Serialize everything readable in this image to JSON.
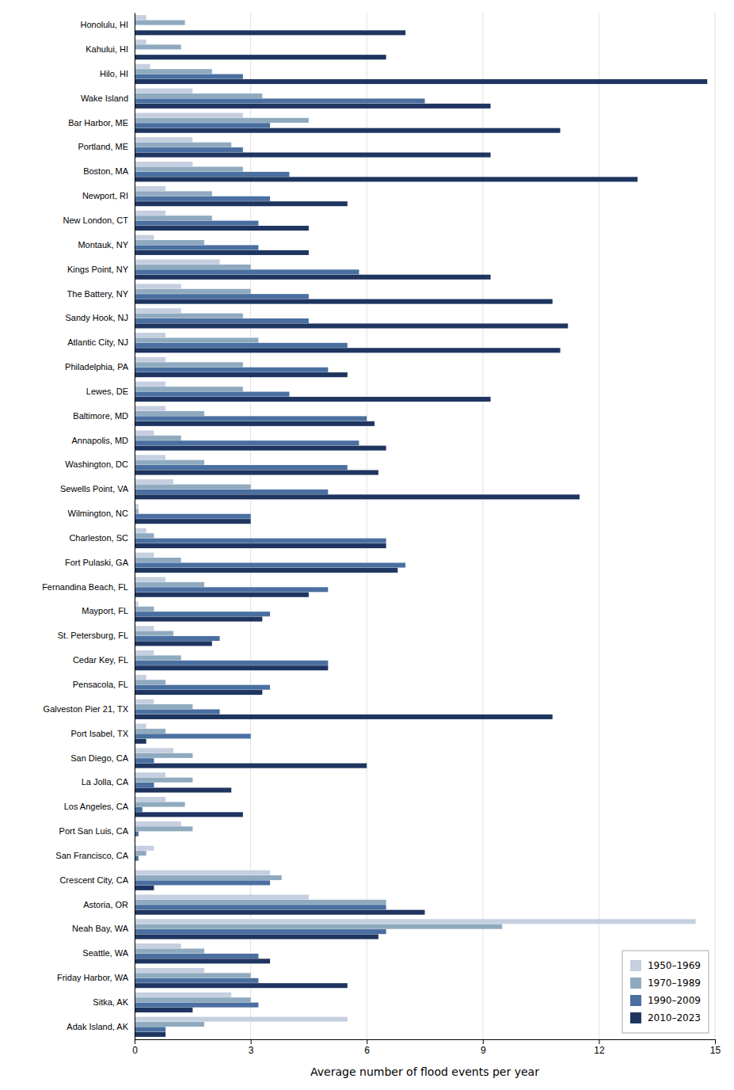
{
  "chart_data": {
    "type": "bar",
    "orientation": "horizontal",
    "xlabel": "Average number of flood events per year",
    "categories": [
      "Honolulu, HI",
      "Kahului, HI",
      "Hilo, HI",
      "Wake Island",
      "Bar Harbor, ME",
      "Portland, ME",
      "Boston, MA",
      "Newport, RI",
      "New London, CT",
      "Montauk, NY",
      "Kings Point, NY",
      "The Battery, NY",
      "Sandy Hook, NJ",
      "Atlantic City, NJ",
      "Philadelphia, PA",
      "Lewes, DE",
      "Baltimore, MD",
      "Annapolis, MD",
      "Washington, DC",
      "Sewells Point, VA",
      "Wilmington, NC",
      "Charleston, SC",
      "Fort Pulaski, GA",
      "Fernandina Beach, FL",
      "Mayport, FL",
      "St. Petersburg, FL",
      "Cedar Key, FL",
      "Pensacola, FL",
      "Galveston Pier 21, TX",
      "Port Isabel, TX",
      "San Diego, CA",
      "La Jolla, CA",
      "Los Angeles, CA",
      "Port San Luis, CA",
      "San Francisco, CA",
      "Crescent City, CA",
      "Astoria, OR",
      "Neah Bay, WA",
      "Seattle, WA",
      "Friday Harbor, WA",
      "Sitka, AK",
      "Adak Island, AK"
    ],
    "series": [
      {
        "name": "1950–1969",
        "color": "#c5cfe0",
        "values": [
          0.3,
          0.3,
          0.4,
          1.5,
          2.8,
          1.5,
          1.5,
          0.8,
          0.8,
          0.5,
          2.2,
          1.2,
          1.2,
          0.8,
          0.8,
          0.8,
          0.8,
          0.5,
          0.8,
          1.0,
          0.1,
          0.3,
          0.5,
          0.8,
          0.1,
          0.5,
          0.5,
          0.3,
          0.5,
          0.3,
          1.0,
          0.8,
          0.8,
          1.2,
          0.5,
          3.5,
          4.5,
          14.5,
          1.2,
          1.8,
          2.5,
          5.5
        ]
      },
      {
        "name": "1970–1989",
        "color": "#8faabf",
        "values": [
          1.3,
          1.2,
          2.0,
          3.3,
          4.5,
          2.5,
          2.8,
          2.0,
          2.0,
          1.8,
          3.0,
          3.0,
          2.8,
          3.2,
          2.8,
          2.8,
          1.8,
          1.2,
          1.8,
          3.0,
          0.1,
          0.5,
          1.2,
          1.8,
          0.5,
          1.0,
          1.2,
          0.8,
          1.5,
          0.8,
          1.5,
          1.5,
          1.3,
          1.5,
          0.3,
          3.8,
          6.5,
          9.5,
          1.8,
          3.0,
          3.0,
          1.8
        ]
      },
      {
        "name": "1990–2009",
        "color": "#4a6fa0",
        "values": [
          0.0,
          0.0,
          2.8,
          7.5,
          3.5,
          2.8,
          4.0,
          3.5,
          3.2,
          3.2,
          5.8,
          4.5,
          4.5,
          5.5,
          5.0,
          4.0,
          6.0,
          5.8,
          5.5,
          5.0,
          3.0,
          6.5,
          7.0,
          5.0,
          3.5,
          2.2,
          5.0,
          3.5,
          2.2,
          3.0,
          0.5,
          0.5,
          0.2,
          0.1,
          0.1,
          3.5,
          6.5,
          6.5,
          3.2,
          3.2,
          3.2,
          0.8
        ]
      },
      {
        "name": "2010–2023",
        "color": "#1e3560",
        "values": [
          7.0,
          6.5,
          14.8,
          9.2,
          11.0,
          9.2,
          13.0,
          5.5,
          4.5,
          4.5,
          9.2,
          10.8,
          11.2,
          11.0,
          5.5,
          9.2,
          6.2,
          6.5,
          6.3,
          11.5,
          3.0,
          6.5,
          6.8,
          4.5,
          3.3,
          2.0,
          5.0,
          3.3,
          10.8,
          0.3,
          6.0,
          2.5,
          2.8,
          0.0,
          0.0,
          0.5,
          7.5,
          6.3,
          3.5,
          5.5,
          1.5,
          0.8
        ]
      }
    ],
    "xlim": [
      0,
      15
    ],
    "xticks": [
      0,
      3,
      6,
      9,
      12,
      15
    ],
    "grid": true,
    "legend": "lower right"
  }
}
